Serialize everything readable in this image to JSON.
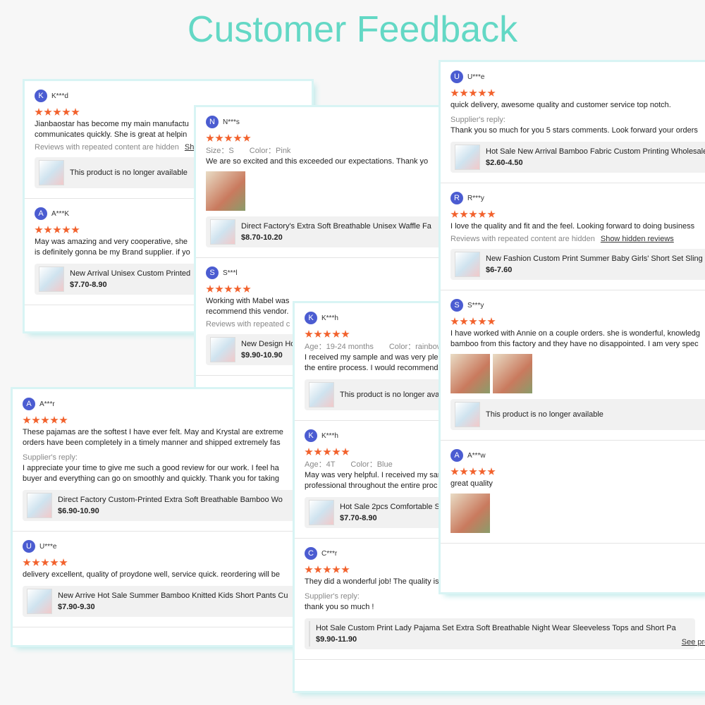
{
  "header": {
    "title": "Customer Feedback"
  },
  "panels": [
    {
      "reviews": [
        {
          "avatar": "K",
          "name": "K***d",
          "text": [
            "Jianbaostar has become my main manufactu",
            "communicates quickly. She is great at helpin"
          ],
          "hidden_note": "Reviews with repeated content are hidden",
          "hidden_link": "Show hidden reviews",
          "product": {
            "title": "This product is no longer available"
          }
        },
        {
          "avatar": "A",
          "name": "A***K",
          "text": [
            "May was amazing and very cooperative, she",
            "is definitely gonna be my Brand supplier. if yo"
          ],
          "product": {
            "title": "New Arrival Unisex Custom Printed",
            "price": "$7.70-8.90"
          }
        }
      ]
    },
    {
      "reviews": [
        {
          "avatar": "N",
          "name": "N***s",
          "attrs": [
            "Size：S",
            "Color：Pink"
          ],
          "text": [
            "We are so excited and this exceeded our expectations. Thank yo"
          ],
          "product": {
            "title": "Direct Factory's Extra Soft Breathable Unisex Waffle Fa",
            "price": "$8.70-10.20"
          }
        },
        {
          "avatar": "S",
          "name": "S***l",
          "text": [
            "Working with Mabel was",
            "recommend this vendor."
          ],
          "hidden_note": "Reviews with repeated c",
          "product": {
            "title": "New Design Ho",
            "price": "$9.90-10.90"
          }
        }
      ]
    },
    {
      "reviews": [
        {
          "avatar": "A",
          "name": "A***r",
          "text": [
            "These pajamas are the softest I have ever felt. May and Krystal are extreme",
            "orders have been completely in a timely manner and shipped extremely fas"
          ],
          "reply_label": "Supplier's reply:",
          "reply": [
            "I appreciate your time to give me such a good review for our work. I feel ha",
            "buyer and everything can go on smoothly and quickly. Thank you for taking"
          ],
          "product": {
            "title": "Direct Factory Custom-Printed Extra Soft Breathable Bamboo Wo",
            "price": "$6.90-10.90"
          }
        },
        {
          "avatar": "U",
          "name": "U***e",
          "text": [
            "delivery excellent, quality of proydone well, service quick. reordering will be"
          ],
          "product": {
            "title": "New Arrive Hot Sale Summer Bamboo Knitted Kids Short Pants Cu",
            "price": "$7.90-9.30"
          }
        }
      ]
    },
    {
      "reviews": [
        {
          "avatar": "K",
          "name": "K***h",
          "attrs": [
            "Age：19-24 months",
            "Color：rainbow"
          ],
          "text": [
            "I received my sample and was very plea",
            "the entire process. I would recommend"
          ],
          "product": {
            "title": "This product is no longer availa"
          }
        },
        {
          "avatar": "K",
          "name": "K***h",
          "attrs": [
            "Age：4T",
            "Color：Blue"
          ],
          "text": [
            "May was very helpful. I received my sar",
            "professional throughout the entire proc"
          ],
          "product": {
            "title": "Hot Sale 2pcs Comfortable Sp",
            "price": "$7.70-8.90"
          }
        },
        {
          "avatar": "C",
          "name": "C***r",
          "text": [
            "They did a wonderful job! The quality is great and they went above and beyond!"
          ],
          "reply_label": "Supplier's reply:",
          "reply": [
            "thank you so much !"
          ],
          "product": {
            "title": "Hot Sale Custom Print Lady Pajama Set Extra Soft Breathable Night Wear Sleeveless Tops and Short Pa",
            "price": "$9.90-11.90",
            "link": "See product det"
          }
        }
      ]
    },
    {
      "reviews": [
        {
          "avatar": "U",
          "name": "U***e",
          "text": [
            "quick delivery, awesome quality and customer service top notch."
          ],
          "reply_label": "Supplier's reply:",
          "reply": [
            "Thank you so much for you 5 stars comments. Look forward your orders"
          ],
          "product": {
            "title": "Hot Sale New Arrival Bamboo Fabric Custom Printing Wholesale",
            "price": "$2.60-4.50"
          }
        },
        {
          "avatar": "R",
          "name": "R***y",
          "text": [
            "I love the quality and fit and the feel. Looking forward to doing business"
          ],
          "hidden_note": "Reviews with repeated content are hidden",
          "hidden_link": "Show hidden reviews",
          "product": {
            "title": "New Fashion Custom Print Summer Baby Girls' Short Set Sling",
            "price": "$6-7.60"
          }
        },
        {
          "avatar": "S",
          "name": "S***y",
          "text": [
            "I have worked with Annie on a couple orders. she is wonderful, knowledg",
            "bamboo from this factory and they have no disappointed. I am very spec"
          ],
          "product": {
            "title": "This product is no longer available"
          }
        },
        {
          "avatar": "A",
          "name": "A***w",
          "text": [
            "great quality"
          ]
        }
      ]
    }
  ]
}
